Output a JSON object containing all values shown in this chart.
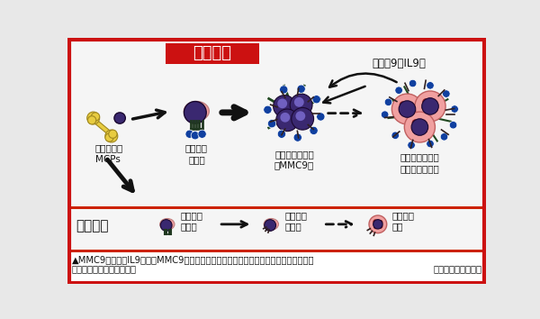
{
  "bg_color": "#e8e8e8",
  "border_color": "#cc1111",
  "title_bg": "#cc1111",
  "title_text": "過敏狀態",
  "title_text_color": "#ffffff",
  "healthy_label": "健康狀態",
  "caption_line1": "▲MMC9大量產生IL9，刺激MMC9數量増加，並導致黏膜肥大細胞釋放出大量含組織胺的",
  "caption_line2": "顔粒，導致嚴重食物過敏。",
  "caption_right": "（圖：王駭西提供）",
  "allergy_labels": [
    "骨髓幹細脹\nMCPs",
    "肥大細脹\n前身體",
    "黏膜肥大細脹９\n（MMC9）",
    "肥大細脹釋出大\n量含組織胺顔粒"
  ],
  "healthy_labels": [
    "肥大細脹\n前身體",
    "黏膜肥大\n細脹９",
    "顔粒肥大\n細脹"
  ],
  "il9_label": "介白素9（IL9）",
  "divider_color": "#cc2200",
  "cell_purple_dark": "#3a2870",
  "cell_purple_light": "#c080c0",
  "cell_pink_light": "#f0a0a0",
  "cell_pink_dark": "#d06060",
  "cell_dot_red": "#a02020",
  "cell_blue": "#1040a0",
  "cell_green": "#204820",
  "bone_yellow": "#e8cc40",
  "bone_edge": "#a08820",
  "text_color": "#111111",
  "arrow_color": "#111111",
  "white": "#ffffff"
}
